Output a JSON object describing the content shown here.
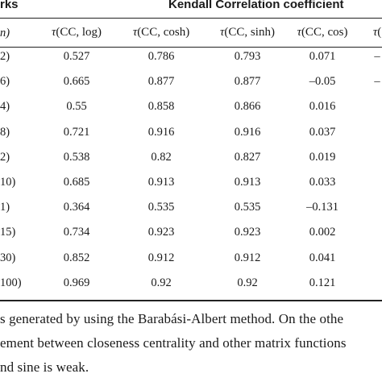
{
  "table": {
    "group_header_left": "rks",
    "group_header_right": "Kendall Correlation coefficient",
    "first_col_header": "n)",
    "columns": [
      {
        "tau": "τ",
        "args": "(CC, log)"
      },
      {
        "tau": "τ",
        "args": "(CC, cosh)"
      },
      {
        "tau": "τ",
        "args": "(CC, sinh)"
      },
      {
        "tau": "τ",
        "args": "(CC, cos)"
      },
      {
        "tau": "τ",
        "args": "("
      }
    ],
    "rows": [
      {
        "label": "2)",
        "values": [
          "0.527",
          "0.786",
          "0.793",
          "0.071",
          "–"
        ]
      },
      {
        "label": "6)",
        "values": [
          "0.665",
          "0.877",
          "0.877",
          "–0.05",
          "–"
        ]
      },
      {
        "label": "4)",
        "values": [
          "0.55",
          "0.858",
          "0.866",
          "0.016",
          ""
        ]
      },
      {
        "label": "8)",
        "values": [
          "0.721",
          "0.916",
          "0.916",
          "0.037",
          ""
        ]
      },
      {
        "label": "2)",
        "values": [
          "0.538",
          "0.82",
          "0.827",
          "0.019",
          ""
        ]
      },
      {
        "label": "10)",
        "values": [
          "0.685",
          "0.913",
          "0.913",
          "0.033",
          ""
        ]
      },
      {
        "label": "1)",
        "values": [
          "0.364",
          "0.535",
          "0.535",
          "–0.131",
          ""
        ]
      },
      {
        "label": "15)",
        "values": [
          "0.734",
          "0.923",
          "0.923",
          "0.002",
          ""
        ]
      },
      {
        "label": "30)",
        "values": [
          "0.852",
          "0.912",
          "0.912",
          "0.041",
          ""
        ]
      },
      {
        "label": "100)",
        "values": [
          "0.969",
          "0.92",
          "0.92",
          "0.121",
          ""
        ]
      }
    ]
  },
  "paragraph": [
    "s generated by using the Barabási-Albert method. On the othe",
    "ement between closeness centrality and other matrix functions",
    "nd sine is weak."
  ]
}
